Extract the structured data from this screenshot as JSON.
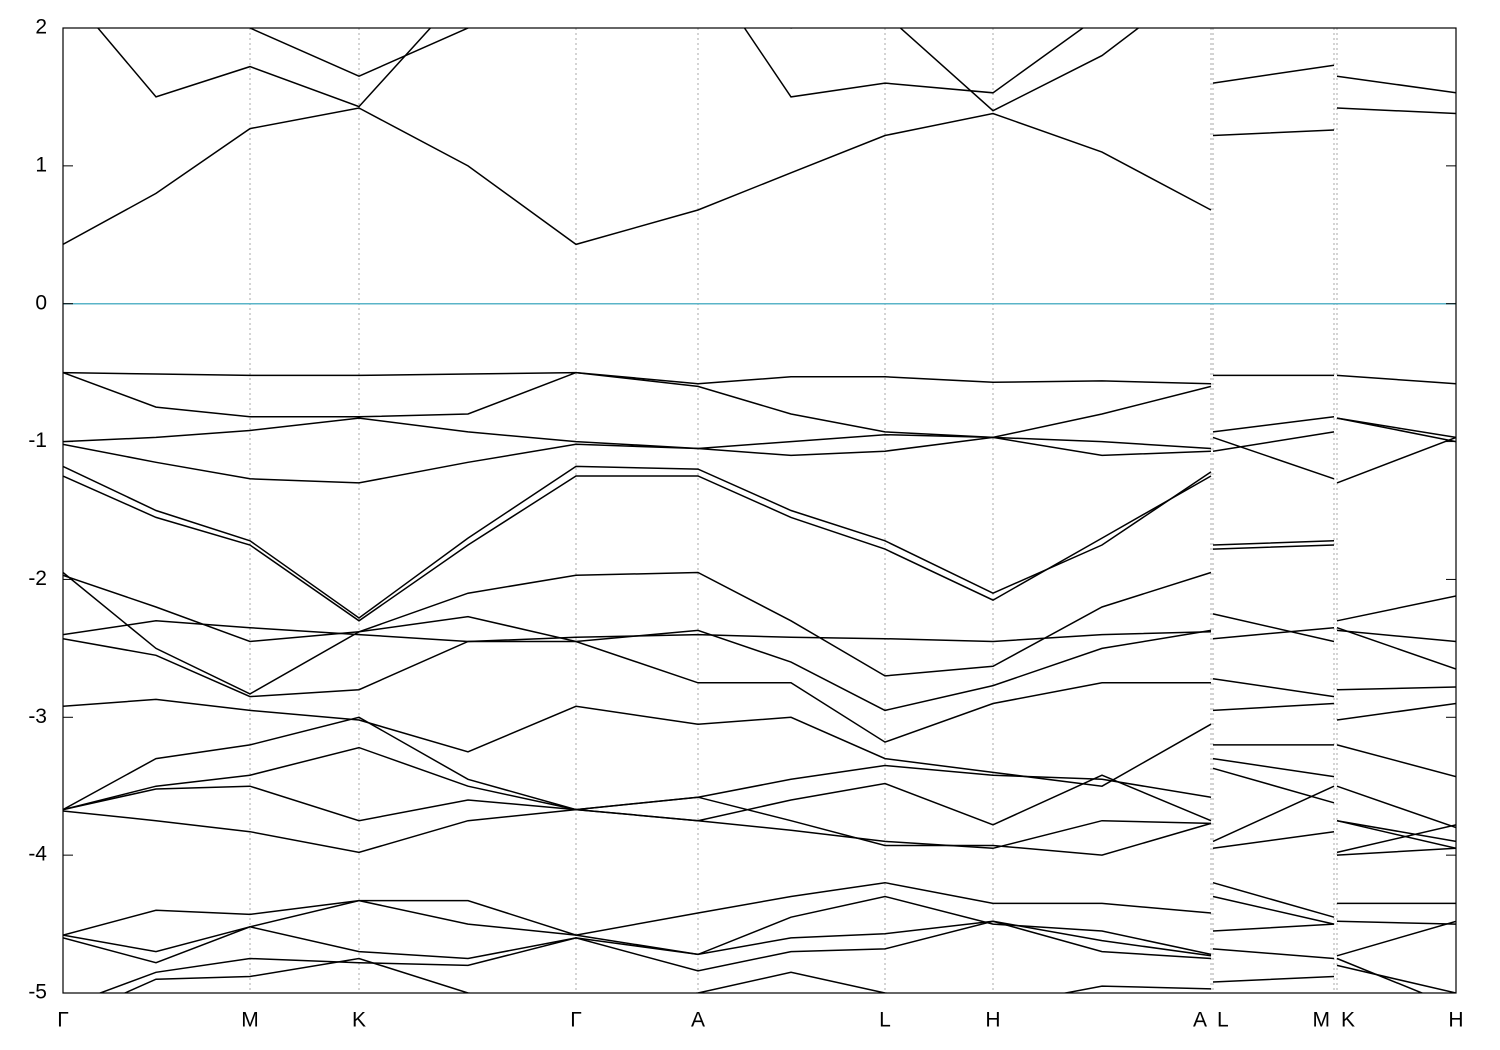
{
  "chart_data": {
    "type": "line",
    "x": [
      0,
      0.93,
      1.87,
      2.96,
      4.05,
      5.13,
      6.35,
      7.28,
      8.22,
      9.3,
      10.39,
      11.48,
      11.49,
      11.5,
      12.71,
      12.72,
      12.74,
      13.93
    ],
    "xlim": [
      0,
      13.93
    ],
    "xticks": [
      {
        "value": 0,
        "label": "Γ"
      },
      {
        "value": 1.87,
        "label": "M"
      },
      {
        "value": 2.96,
        "label": "K"
      },
      {
        "value": 5.13,
        "label": "Γ"
      },
      {
        "value": 6.35,
        "label": "A"
      },
      {
        "value": 8.22,
        "label": "L"
      },
      {
        "value": 9.3,
        "label": "H"
      },
      {
        "value": 11.48,
        "label": "A"
      },
      {
        "value": 11.5,
        "label": "L"
      },
      {
        "value": 12.71,
        "label": "M"
      },
      {
        "value": 12.74,
        "label": "K"
      },
      {
        "value": 13.93,
        "label": "H"
      }
    ],
    "ylim": [
      -5,
      2
    ],
    "yticks": [
      -5,
      -4,
      -3,
      -2,
      -1,
      0,
      1,
      2
    ],
    "xgrid": true,
    "color": "#000000",
    "fermi_level": 0,
    "fermi_color": "#5ab4c8",
    "series": [
      {
        "values": [
          0.43,
          0.8,
          1.27,
          1.42,
          1.0,
          0.43,
          0.68,
          0.95,
          1.22,
          1.38,
          1.1,
          0.68,
          null,
          1.22,
          1.26,
          null,
          1.42,
          1.38
        ]
      },
      {
        "values": [
          2.3,
          1.5,
          1.72,
          1.43,
          2.3,
          2.8,
          2.5,
          1.5,
          1.6,
          1.53,
          2.1,
          2.6,
          null,
          1.6,
          1.73,
          null,
          1.65,
          1.53
        ]
      },
      {
        "values": [
          2.8,
          2.3,
          2.0,
          1.65,
          2.0,
          2.9,
          2.7,
          2.0,
          2.1,
          1.4,
          1.8,
          2.4,
          null,
          null,
          null,
          null,
          null,
          null
        ]
      },
      {
        "values": [
          -0.5,
          -0.51,
          -0.52,
          -0.52,
          -0.51,
          -0.5,
          -0.58,
          -0.53,
          -0.53,
          -0.57,
          -0.56,
          -0.58,
          null,
          -0.52,
          -0.52,
          null,
          -0.52,
          -0.58
        ]
      },
      {
        "values": [
          -0.5,
          -0.75,
          -0.82,
          -0.82,
          -0.8,
          -0.5,
          -0.6,
          -0.8,
          -0.93,
          -0.97,
          -0.8,
          -0.6,
          null,
          -0.93,
          -0.82,
          null,
          -0.83,
          -0.97
        ]
      },
      {
        "values": [
          -1.0,
          -0.97,
          -0.92,
          -0.83,
          -0.93,
          -1.0,
          -1.05,
          -1.0,
          -0.95,
          -0.97,
          -1.0,
          -1.05,
          null,
          -1.07,
          -0.93,
          null,
          -0.83,
          -1.0
        ]
      },
      {
        "values": [
          -1.02,
          -1.15,
          -1.27,
          -1.3,
          -1.15,
          -1.02,
          -1.05,
          -1.1,
          -1.07,
          -0.97,
          -1.1,
          -1.07,
          null,
          -0.97,
          -1.27,
          null,
          -1.3,
          -0.97
        ]
      },
      {
        "values": [
          -1.18,
          -1.5,
          -1.72,
          -2.28,
          -1.7,
          -1.18,
          -1.2,
          -1.5,
          -1.72,
          -2.1,
          -1.75,
          -1.22,
          null,
          -1.75,
          -1.72,
          null,
          -2.3,
          -2.12
        ]
      },
      {
        "values": [
          -1.25,
          -1.55,
          -1.75,
          -2.3,
          -1.75,
          -1.25,
          -1.25,
          -1.55,
          -1.78,
          -2.15,
          -1.7,
          -1.25,
          null,
          -1.78,
          -1.75,
          null,
          -2.37,
          -2.45
        ]
      },
      {
        "values": [
          -1.95,
          -2.5,
          -2.83,
          -2.38,
          -2.1,
          -1.97,
          -1.95,
          -2.3,
          -2.7,
          -2.63,
          -2.2,
          -1.95,
          null,
          -2.25,
          -2.45,
          null,
          -2.35,
          -2.65
        ]
      },
      {
        "values": [
          -1.97,
          -2.2,
          -2.45,
          -2.38,
          -2.27,
          -2.45,
          -2.37,
          -2.6,
          -2.95,
          -2.77,
          -2.5,
          -2.37,
          null,
          -2.43,
          -2.35,
          null,
          -2.8,
          -2.78
        ]
      },
      {
        "values": [
          -2.4,
          -2.3,
          -2.35,
          -2.4,
          -2.45,
          -2.42,
          -2.4,
          -2.42,
          -2.43,
          -2.45,
          -2.4,
          -2.38,
          null,
          -2.72,
          -2.85,
          null,
          -3.02,
          -2.9
        ]
      },
      {
        "values": [
          -2.43,
          -2.55,
          -2.85,
          -2.8,
          -2.45,
          -2.45,
          -2.75,
          -2.75,
          -3.18,
          -2.9,
          -2.75,
          -2.75,
          null,
          -2.95,
          -2.9,
          null,
          -3.2,
          -3.43
        ]
      },
      {
        "values": [
          -2.92,
          -2.87,
          -2.95,
          -3.02,
          -3.25,
          -2.92,
          -3.05,
          -3.0,
          -3.3,
          -3.4,
          -3.5,
          -3.05,
          null,
          -3.2,
          -3.2,
          null,
          -3.5,
          -3.8
        ]
      },
      {
        "values": [
          -3.67,
          -3.3,
          -3.2,
          -3.0,
          -3.45,
          -3.67,
          -3.58,
          -3.45,
          -3.35,
          -3.42,
          -3.45,
          -3.58,
          null,
          -3.3,
          -3.43,
          null,
          -3.75,
          -3.95
        ]
      },
      {
        "values": [
          -3.67,
          -3.5,
          -3.42,
          -3.22,
          -3.5,
          -3.67,
          -3.75,
          -3.6,
          -3.48,
          -3.78,
          -3.42,
          -3.75,
          null,
          -3.37,
          -3.62,
          null,
          -3.98,
          -3.78
        ]
      },
      {
        "values": [
          -3.67,
          -3.52,
          -3.5,
          -3.75,
          -3.6,
          -3.67,
          -3.75,
          -3.82,
          -3.9,
          -3.95,
          -3.75,
          -3.77,
          null,
          -3.9,
          -3.5,
          null,
          -3.75,
          -3.9
        ]
      },
      {
        "values": [
          -3.68,
          -3.75,
          -3.83,
          -3.98,
          -3.75,
          -3.67,
          -3.58,
          -3.75,
          -3.93,
          -3.93,
          -4.0,
          -3.77,
          null,
          -3.95,
          -3.83,
          null,
          -4.0,
          -3.95
        ]
      },
      {
        "values": [
          -4.58,
          -4.4,
          -4.43,
          -4.33,
          -4.33,
          -4.58,
          -4.42,
          -4.3,
          -4.2,
          -4.35,
          -4.35,
          -4.42,
          null,
          -4.2,
          -4.45,
          null,
          -4.35,
          -4.35
        ]
      },
      {
        "values": [
          -4.58,
          -4.7,
          -4.52,
          -4.33,
          -4.5,
          -4.58,
          -4.72,
          -4.45,
          -4.3,
          -4.5,
          -4.55,
          -4.72,
          null,
          -4.3,
          -4.5,
          null,
          -4.48,
          -4.5
        ]
      },
      {
        "values": [
          -4.6,
          -4.78,
          -4.52,
          -4.7,
          -4.75,
          -4.6,
          -4.72,
          -4.6,
          -4.57,
          -4.48,
          -4.62,
          -4.73,
          null,
          -4.55,
          -4.5,
          null,
          -4.73,
          -4.48
        ]
      },
      {
        "values": [
          -5.1,
          -4.85,
          -4.75,
          -4.78,
          -4.8,
          -4.6,
          -4.84,
          -4.7,
          -4.68,
          -4.48,
          -4.7,
          -4.75,
          null,
          -4.68,
          -4.75,
          null,
          -4.8,
          -5.0
        ]
      },
      {
        "values": [
          -5.2,
          -4.9,
          -4.88,
          -4.75,
          -5.0,
          -5.1,
          -5.0,
          -4.85,
          -5.0,
          -5.1,
          -4.95,
          -4.97,
          null,
          -4.92,
          -4.88,
          null,
          -4.75,
          -5.1
        ]
      }
    ]
  }
}
